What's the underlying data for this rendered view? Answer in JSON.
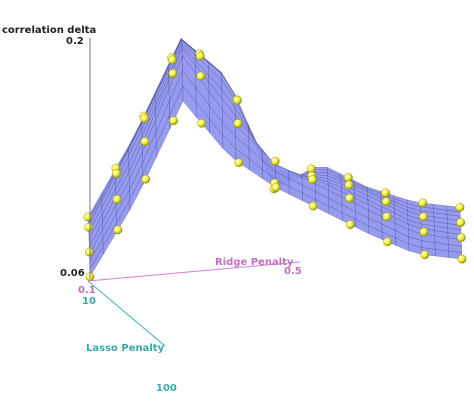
{
  "chart_data": {
    "type": "surface3d",
    "z_axis_title": "correlation delta",
    "z_tick_top": "0.2",
    "z_tick_bottom": "0.06",
    "ridge_axis_title": "Ridge Penalty",
    "ridge_tick_start": "0.1",
    "ridge_tick_end": "0.5",
    "lasso_axis_title": "Lasso Penalty",
    "lasso_tick_start": "10",
    "lasso_tick_end": "100",
    "zlim": [
      0.06,
      0.2
    ],
    "ridge_range": [
      0.1,
      0.5
    ],
    "lasso_range": [
      10,
      100
    ],
    "surface_profile": {
      "ridge": [
        0.1,
        0.15,
        0.2,
        0.25,
        0.3,
        0.35,
        0.4,
        0.45,
        0.5
      ],
      "lasso": [
        10,
        40,
        70,
        100
      ],
      "delta": [
        [
          0.062,
          0.11,
          0.17,
          0.135,
          0.115,
          0.1,
          0.085,
          0.072,
          0.068
        ],
        [
          0.066,
          0.12,
          0.19,
          0.15,
          0.12,
          0.105,
          0.09,
          0.075,
          0.07
        ],
        [
          0.07,
          0.125,
          0.185,
          0.16,
          0.095,
          0.1,
          0.088,
          0.073,
          0.068
        ],
        [
          0.065,
          0.115,
          0.175,
          0.15,
          0.08,
          0.095,
          0.08,
          0.07,
          0.066
        ]
      ]
    },
    "colors": {
      "surface_fill": "#8e92ee",
      "surface_mesh": "#2c2f6e",
      "points": "#f2f23a",
      "z_axis": "#7a7a7a",
      "ridge_axis": "#d080d0",
      "lasso_axis": "#40b0b0"
    }
  }
}
